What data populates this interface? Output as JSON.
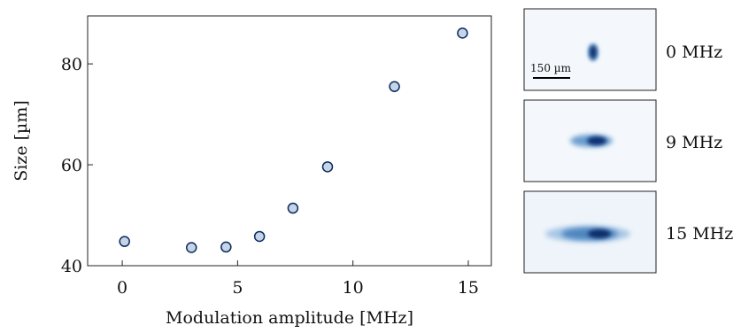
{
  "chart_data": {
    "type": "scatter",
    "title": "",
    "xlabel": "Modulation amplitude [MHz]",
    "ylabel": "Size [µm]",
    "xlim": [
      -1.5,
      16
    ],
    "ylim": [
      40,
      89.5
    ],
    "xticks": [
      0,
      5,
      10,
      15
    ],
    "yticks": [
      40,
      60,
      80
    ],
    "grid": false,
    "legend": "none",
    "marker_fill": "#c6d4e8",
    "marker_edge": "#0b2a5e",
    "series": [
      {
        "x": [
          0.1,
          3.0,
          4.5,
          5.95,
          7.4,
          8.9,
          11.8,
          14.75
        ],
        "y": [
          44.8,
          43.6,
          43.7,
          45.8,
          51.4,
          59.6,
          75.5,
          86.1
        ]
      }
    ]
  },
  "insets": [
    {
      "label": "0 MHz",
      "modulation_mhz": 0,
      "scale_bar": "150 µm"
    },
    {
      "label": "9 MHz",
      "modulation_mhz": 9
    },
    {
      "label": "15 MHz",
      "modulation_mhz": 15
    }
  ]
}
